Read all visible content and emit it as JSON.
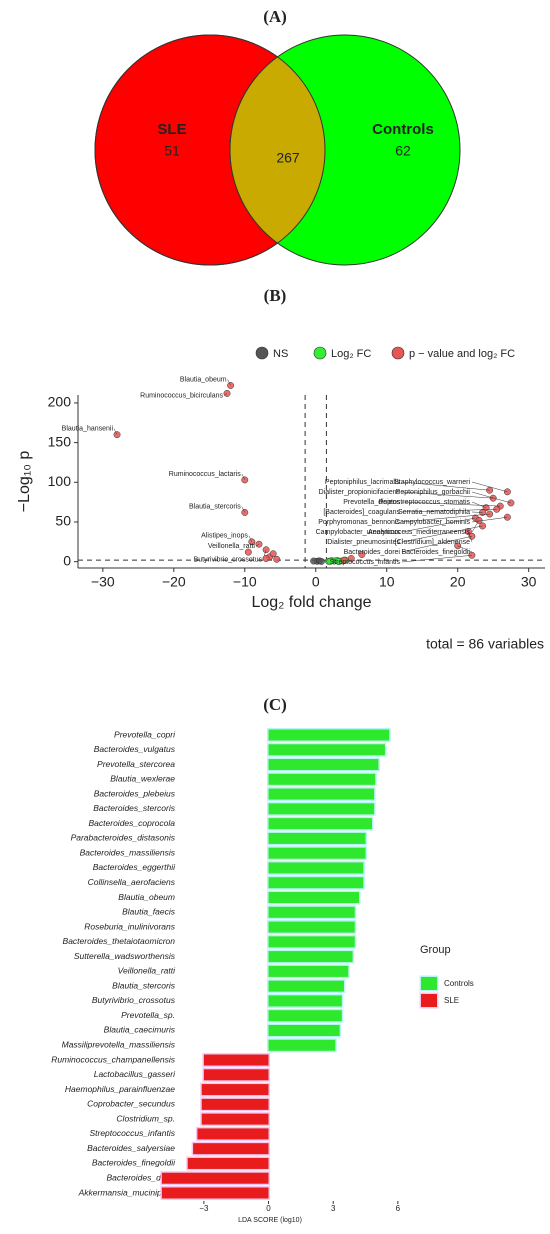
{
  "chart_data": [
    {
      "type": "venn",
      "panel_label": "(A)",
      "sets": [
        {
          "name": "SLE",
          "color": "#ff0000",
          "value": 51
        },
        {
          "name": "Controls",
          "color": "#00ff00",
          "value": 62
        }
      ],
      "intersection": {
        "value": 267,
        "color": "#c8aa00"
      }
    },
    {
      "type": "scatter",
      "panel_label": "(B)",
      "xlabel": "Log₂ fold change",
      "ylabel": "−Log₁₀ p",
      "xlim": [
        -33.5,
        32.3
      ],
      "ylim": [
        -8,
        210
      ],
      "xticks": [
        {
          "value": -30,
          "label": "−30"
        },
        {
          "value": -20,
          "label": "−20"
        },
        {
          "value": -10,
          "label": "−10"
        },
        0,
        10,
        20,
        30
      ],
      "yticks": [
        0,
        50,
        100,
        150,
        200
      ],
      "vlines": [
        -1.5,
        1.5
      ],
      "hline": 2,
      "footnote": "total = 86 variables",
      "series": [
        {
          "name": "NS",
          "color": "#555555",
          "x": [
            0.2,
            0.5,
            -0.3,
            0.8
          ],
          "values": [
            0.5,
            1.0,
            0.8,
            0.3
          ]
        },
        {
          "name": "Log₂ FC",
          "color": "#33ee33",
          "x": [
            1.8,
            2.2,
            2.6,
            3.0,
            3.4,
            3.8,
            4.2,
            2.0,
            3.2
          ],
          "values": [
            0.5,
            1.2,
            0.8,
            1.5,
            0.6,
            1.0,
            1.8,
            0.3,
            0.2
          ]
        },
        {
          "name": "p − value and log₂ FC",
          "color": "#e85555",
          "x": [
            -12,
            -12.5,
            -28,
            -10,
            -10,
            -9,
            -8,
            -7,
            24.5,
            27,
            25,
            27.5,
            26,
            24,
            25.5,
            23.5,
            24.5,
            27,
            22.5,
            23,
            23.5,
            21.5,
            22,
            20,
            22,
            -6.5,
            -6,
            -7,
            -5.5,
            5,
            6.5,
            4,
            -9.5
          ],
          "values": [
            222,
            212,
            160,
            103,
            62,
            25,
            22,
            15,
            90,
            88,
            80,
            74,
            70,
            68,
            66,
            62,
            60,
            56,
            55,
            52,
            45,
            38,
            32,
            20,
            8,
            6,
            10,
            4,
            3,
            4,
            9,
            2,
            12
          ],
          "labels": [
            "Blautia_obeum",
            "Ruminococcus_bicirculans",
            "Blautia_hansenii",
            "Ruminococcus_lactaris",
            "Blautia_stercoris",
            "Alistipes_inops",
            "Veillonella_ratti",
            "Butyrivibrio_crossotus",
            "Peptoniphilus_lacrimalis",
            "Staphylococcus_warneri",
            "Dialister_propionicifaciens",
            "Peptoniphilus_gorbachii",
            "Prevotella_disiens",
            "Peptostreptococcus_stomatis",
            "[Bacteroides]_coagulans",
            "Serratia_nematodiphila",
            "Porphyromonas_bennonis",
            "Campylobacter_hominis",
            "Campylobacter_ureolyticus",
            "Anaerococcus_mediterraneensis",
            "Dialister_pneumosintes",
            "[Clostridium]_aldenense",
            "Bacteroides_dorei",
            "Bacteroides_finegoldii",
            "Streptococcus_infantis",
            null,
            null,
            null,
            null,
            null,
            null,
            null,
            null
          ]
        }
      ]
    },
    {
      "type": "hbar",
      "panel_label": "(C)",
      "xlabel": "LDA SCORE (log10)",
      "legend_title": "Group",
      "xlim": [
        -5.5,
        6.1
      ],
      "xticks": [
        {
          "value": -3,
          "label": "−3"
        },
        0,
        3,
        6
      ],
      "categories": [
        "Prevotella_copri",
        "Bacteroides_vulgatus",
        "Prevotella_stercorea",
        "Blautia_wexlerae",
        "Bacteroides_plebeius",
        "Bacteroides_stercoris",
        "Bacteroides_coprocola",
        "Parabacteroides_distasonis",
        "Bacteroides_massiliensis",
        "Bacteroides_eggerthii",
        "Collinsella_aerofaciens",
        "Blautia_obeum",
        "Blautia_faecis",
        "Roseburia_inulinivorans",
        "Bacteroides_thetaiotaomicron",
        "Sutterella_wadsworthensis",
        "Veillonella_ratti",
        "Blautia_stercoris",
        "Butyrivibrio_crossotus",
        "Prevotella_sp.",
        "Blautia_caecimuris",
        "Massiliprevotella_massiliensis",
        "Ruminococcus_champanellensis",
        "Lactobacillus_gasseri",
        "Haemophilus_parainfluenzae",
        "Coprobacter_secundus",
        "Clostridium_sp.",
        "Streptococcus_infantis",
        "Bacteroides_salyersiae",
        "Bacteroides_finegoldii",
        "Bacteroides_dorei",
        "Akkermansia_muciniphila"
      ],
      "series": [
        {
          "name": "Controls",
          "color": "#2ee82e",
          "halo": "#b8f4f4",
          "values": [
            5.6,
            5.4,
            5.1,
            4.95,
            4.9,
            4.9,
            4.8,
            4.5,
            4.5,
            4.4,
            4.4,
            4.2,
            4.0,
            4.0,
            4.0,
            3.9,
            3.7,
            3.5,
            3.4,
            3.4,
            3.3,
            3.1,
            null,
            null,
            null,
            null,
            null,
            null,
            null,
            null,
            null,
            null
          ]
        },
        {
          "name": "SLE",
          "color": "#e81c1c",
          "halo": "#f4c8f0",
          "values": [
            null,
            null,
            null,
            null,
            null,
            null,
            null,
            null,
            null,
            null,
            null,
            null,
            null,
            null,
            null,
            null,
            null,
            null,
            null,
            null,
            null,
            null,
            -3.0,
            -3.0,
            -3.1,
            -3.1,
            -3.1,
            -3.3,
            -3.5,
            -3.75,
            -4.95,
            -4.95
          ]
        }
      ]
    }
  ]
}
